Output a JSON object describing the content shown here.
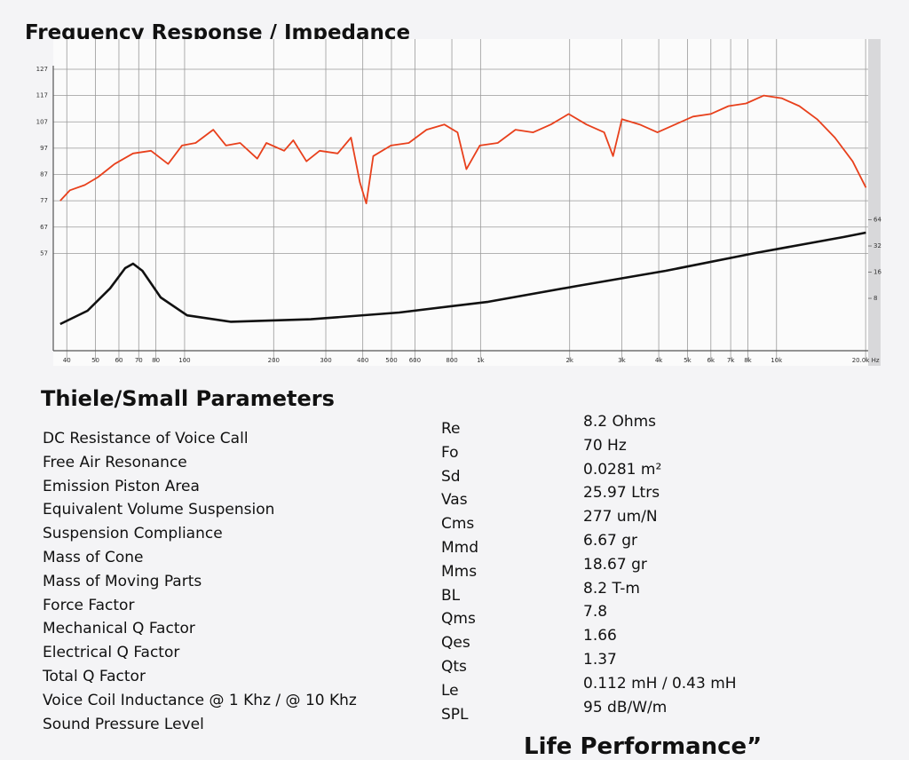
{
  "header": {
    "title": "Frequency Response / Impedance"
  },
  "chart_data": {
    "type": "line",
    "xlog": true,
    "y2log": true,
    "grid": true,
    "xlim": [
      36,
      20400
    ],
    "ylim": [
      20,
      127
    ],
    "y2lim": [
      2,
      3440
    ],
    "xticks": [
      40,
      50,
      60,
      70,
      80,
      100,
      200,
      300,
      400,
      500,
      600,
      800,
      {
        "value": 1000,
        "label": "1k"
      },
      {
        "value": 2000,
        "label": "2k"
      },
      {
        "value": 3000,
        "label": "3k"
      },
      {
        "value": 4000,
        "label": "4k"
      },
      {
        "value": 5000,
        "label": "5k"
      },
      {
        "value": 6000,
        "label": "6k"
      },
      {
        "value": 7000,
        "label": "7k"
      },
      {
        "value": 8000,
        "label": "8k"
      },
      {
        "value": 10000,
        "label": "10k"
      },
      {
        "value": 20000,
        "label": "20.0k Hz"
      }
    ],
    "yticks": [
      127,
      117,
      107,
      97,
      87,
      77,
      67,
      57
    ],
    "y2ticks": [
      64,
      32,
      16,
      8
    ],
    "series": [
      {
        "color": "#e8401c",
        "x": [
          38,
          41,
          46,
          51,
          58,
          67,
          77,
          88,
          98,
          109,
          125,
          138,
          154,
          176,
          189,
          217,
          233,
          258,
          286,
          329,
          365,
          391,
          411,
          434,
          498,
          572,
          657,
          754,
          836,
          896,
          994,
          1143,
          1312,
          1506,
          1729,
          1985,
          2279,
          2616,
          2803,
          3004,
          3449,
          3959,
          4545,
          5218,
          5990,
          6877,
          7895,
          9063,
          10405,
          11946,
          13714,
          15744,
          18075,
          20050
        ],
        "values": [
          77,
          81,
          83,
          86,
          91,
          95,
          96,
          91,
          98,
          99,
          104,
          98,
          99,
          93,
          99,
          96,
          100,
          92,
          96,
          95,
          101,
          84,
          76,
          94,
          98,
          99,
          104,
          106,
          103,
          89,
          98,
          99,
          104,
          103,
          106,
          110,
          106,
          103,
          94,
          108,
          106,
          103,
          106,
          109,
          110,
          113,
          114,
          117,
          116,
          113,
          108,
          101,
          92,
          82
        ]
      },
      {
        "color": "#111111",
        "axis": "y2",
        "x": [
          38,
          47,
          56,
          63,
          67,
          72,
          83,
          102,
          143,
          267,
          531,
          1062,
          2118,
          4226,
          8434,
          16830,
          20050
        ],
        "values": [
          4.05,
          5.76,
          10.4,
          17.8,
          20.0,
          16.6,
          8.2,
          5.1,
          4.3,
          4.6,
          5.5,
          7.3,
          11.1,
          16.6,
          26.5,
          40.5,
          45.6
        ]
      }
    ]
  },
  "parameters": {
    "title": "Thiele/Small Parameters",
    "rows": [
      [
        "DC Resistance of Voice Call",
        "Re",
        "8.2 Ohms"
      ],
      [
        "Free Air Resonance",
        "Fo",
        "70 Hz"
      ],
      [
        "Emission Piston Area",
        "Sd",
        "0.0281 m²"
      ],
      [
        "Equivalent Volume Suspension",
        "Vas",
        "25.97 Ltrs"
      ],
      [
        "Suspension Compliance",
        "Cms",
        "277 um/N"
      ],
      [
        "Mass of Cone",
        "Mmd",
        "6.67 gr"
      ],
      [
        "Mass of Moving Parts",
        "Mms",
        "18.67 gr"
      ],
      [
        "Force Factor",
        "BL",
        "8.2 T-m"
      ],
      [
        "Mechanical Q Factor",
        "Qms",
        "7.8"
      ],
      [
        "Electrical Q Factor",
        "Qes",
        "1.66"
      ],
      [
        "Total Q Factor",
        "Qts",
        "1.37"
      ],
      [
        "Voice Coil Inductance @ 1 Khz / @ 10 Khz",
        "Le",
        "0.112 mH / 0.43 mH"
      ],
      [
        "Sound Pressure Level",
        "SPL",
        "95 dB/W/m"
      ]
    ]
  },
  "footer": "Life Performance”"
}
